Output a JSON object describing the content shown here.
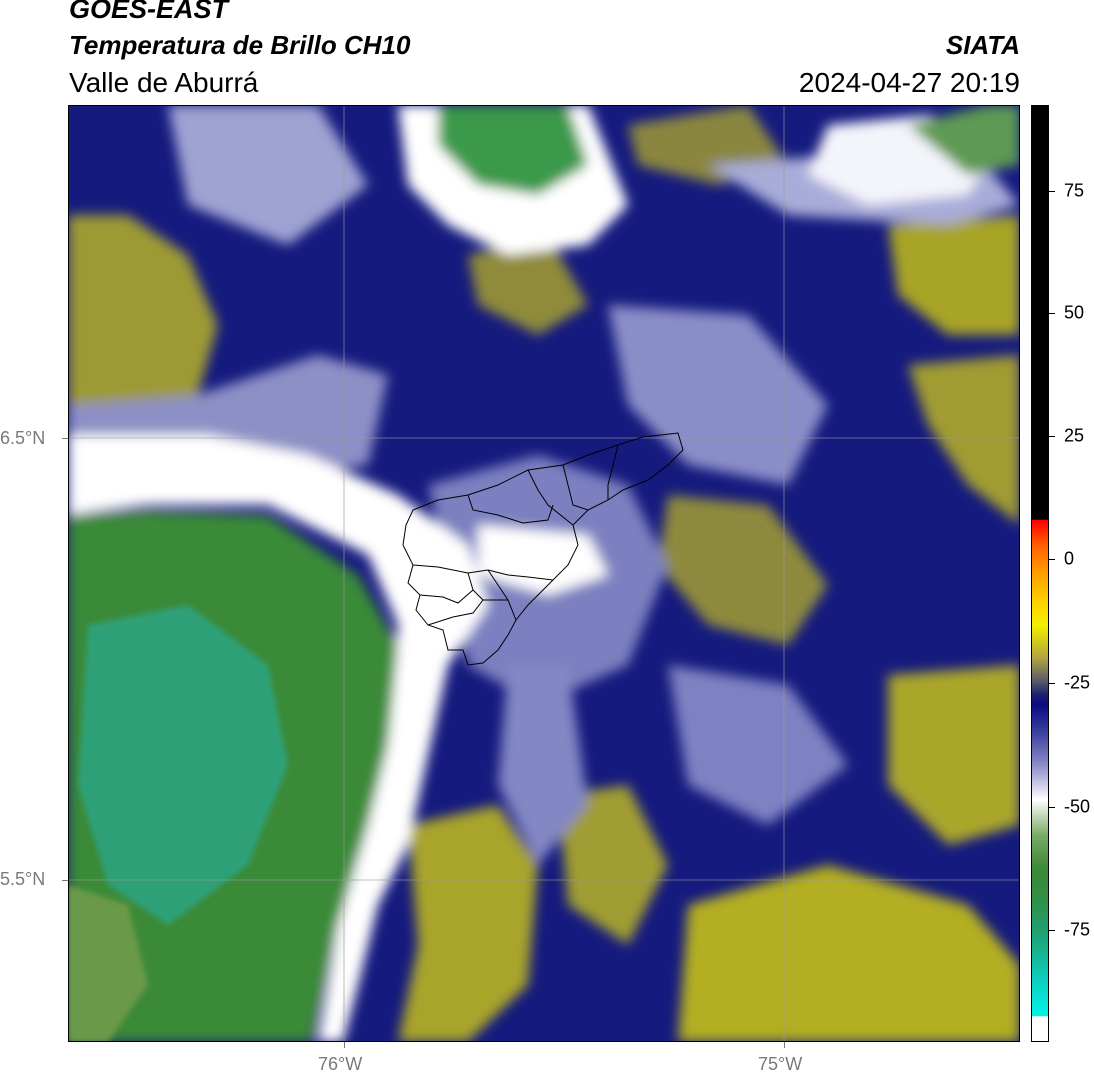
{
  "header": {
    "satellite": "GOES-EAST",
    "product": "Temperatura de Brillo CH10",
    "region": "Valle de Aburrá",
    "agency": "SIATA",
    "timestamp": "2024-04-27 20:19"
  },
  "axes": {
    "latitude_labels": [
      "6.5°N",
      "5.5°N"
    ],
    "longitude_labels": [
      "76°W",
      "75°W"
    ]
  },
  "colorbar": {
    "ticks": [
      "75",
      "50",
      "25",
      "0",
      "-25",
      "-50",
      "-75"
    ],
    "palette_colors": [
      "#000000",
      "#ff0000",
      "#ffa000",
      "#f5f000",
      "#b0a640",
      "#0a0a80",
      "#8080c0",
      "#ffffff",
      "#7aab68",
      "#2f9148",
      "#00f0e6"
    ]
  },
  "map": {
    "background_colors": {
      "cold_green": "#3c8a36",
      "deep_blue": "#14187a",
      "lavender": "#9ea2d0",
      "olive": "#9a9a30",
      "white": "#ffffff"
    },
    "boundary_color": "#000000",
    "gridline_color": "#9a9a9a"
  }
}
